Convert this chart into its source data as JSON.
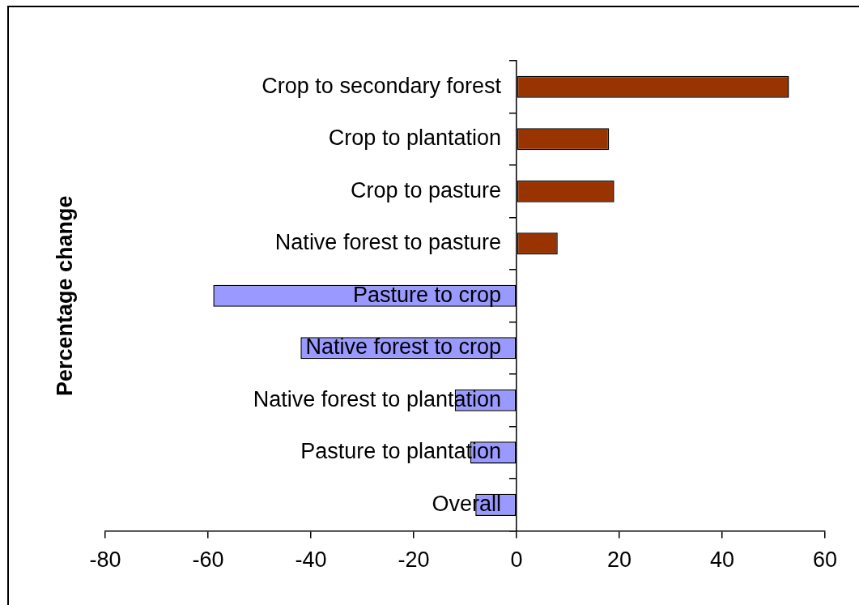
{
  "chart_data": {
    "type": "bar",
    "orientation": "horizontal",
    "ylabel": "Percentage change",
    "categories": [
      "Crop to secondary forest",
      "Crop to plantation",
      "Crop to pasture",
      "Native forest to pasture",
      "Pasture to crop",
      "Native forest to crop",
      "Native forest to plantation",
      "Pasture to plantation",
      "Overall"
    ],
    "values": [
      53,
      18,
      19,
      8,
      -59,
      -42,
      -12,
      -9,
      -8
    ],
    "colors": [
      "#993300",
      "#993300",
      "#993300",
      "#993300",
      "#9999ff",
      "#9999ff",
      "#9999ff",
      "#9999ff",
      "#9999ff"
    ],
    "xlim": [
      -80,
      60
    ],
    "xticks": [
      -80,
      -60,
      -40,
      -20,
      0,
      20,
      40,
      60
    ]
  }
}
